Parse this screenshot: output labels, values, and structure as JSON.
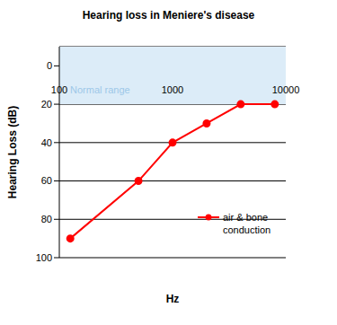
{
  "chart_data": {
    "type": "line",
    "title": "Hearing loss in Meniere's disease",
    "x_label": "Hz",
    "y_label": "Hearing Loss (dB)",
    "x": [
      125,
      500,
      1000,
      2000,
      4000,
      8000
    ],
    "series": [
      {
        "name": "air & bone conduction",
        "color": "#ff0000",
        "marker": "circle",
        "values": [
          90,
          60,
          40,
          30,
          20,
          20
        ]
      }
    ],
    "xlim": [
      100,
      10000
    ],
    "xticks": [
      100,
      1000,
      10000
    ],
    "ylim": [
      100,
      -10
    ],
    "yticks": [
      0,
      20,
      40,
      60,
      80,
      100
    ],
    "log": "x",
    "grid": true,
    "legend": "right",
    "annotations": [
      {
        "text": "Normal range",
        "y_range": [
          -10,
          20
        ]
      }
    ]
  }
}
